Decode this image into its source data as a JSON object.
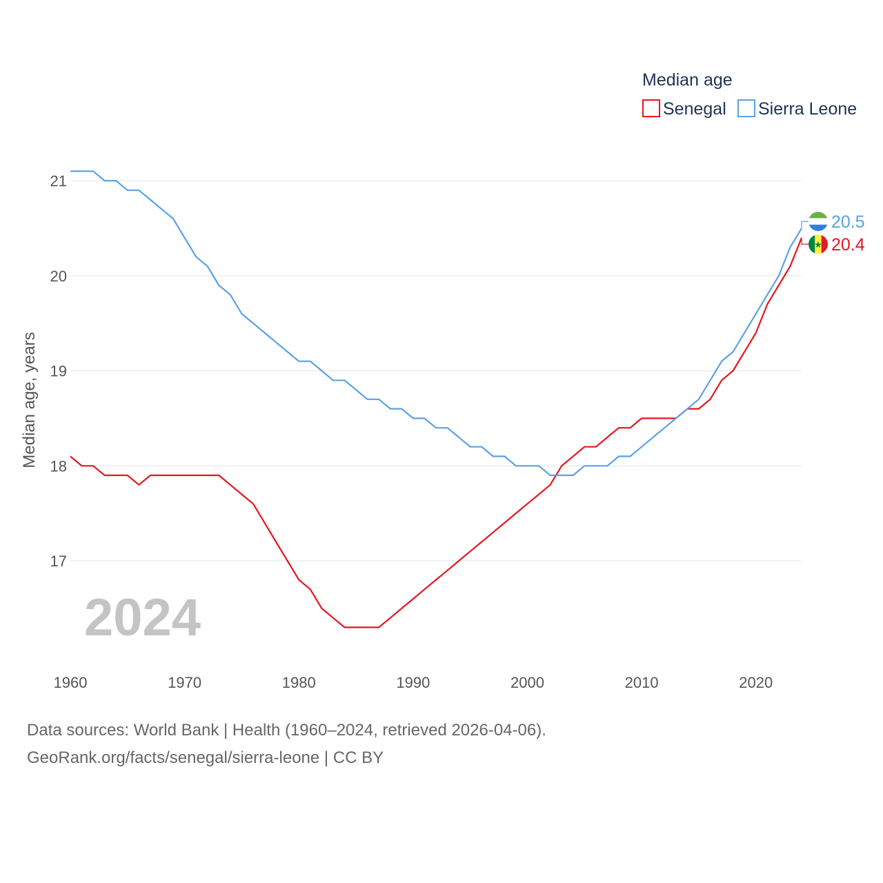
{
  "chart_data": {
    "type": "line",
    "title": "",
    "legend_title": "Median age",
    "ylabel": "Median age, years",
    "xlabel": "",
    "xlim": [
      1960,
      2024
    ],
    "ylim": [
      16.0,
      21.2
    ],
    "x_ticks": [
      "1960",
      "1970",
      "1980",
      "1990",
      "2000",
      "2010",
      "2020"
    ],
    "y_ticks": [
      "17",
      "18",
      "19",
      "20",
      "21"
    ],
    "year_label": "2024",
    "x": [
      1960,
      1961,
      1962,
      1963,
      1964,
      1965,
      1966,
      1967,
      1968,
      1969,
      1970,
      1971,
      1972,
      1973,
      1974,
      1975,
      1976,
      1977,
      1978,
      1979,
      1980,
      1981,
      1982,
      1983,
      1984,
      1985,
      1986,
      1987,
      1988,
      1989,
      1990,
      1991,
      1992,
      1993,
      1994,
      1995,
      1996,
      1997,
      1998,
      1999,
      2000,
      2001,
      2002,
      2003,
      2004,
      2005,
      2006,
      2007,
      2008,
      2009,
      2010,
      2011,
      2012,
      2013,
      2014,
      2015,
      2016,
      2017,
      2018,
      2019,
      2020,
      2021,
      2022,
      2023,
      2024
    ],
    "series": [
      {
        "name": "Senegal",
        "color": "#e8141e",
        "end_label": "20.4",
        "flag_icon": "senegal-flag-icon",
        "values": [
          18.1,
          18.0,
          18.0,
          17.9,
          17.9,
          17.9,
          17.8,
          17.9,
          17.9,
          17.9,
          17.9,
          17.9,
          17.9,
          17.9,
          17.8,
          17.7,
          17.6,
          17.4,
          17.2,
          17.0,
          16.8,
          16.7,
          16.5,
          16.4,
          16.3,
          16.3,
          16.3,
          16.3,
          16.4,
          16.5,
          16.6,
          16.7,
          16.8,
          16.9,
          17.0,
          17.1,
          17.2,
          17.3,
          17.4,
          17.5,
          17.6,
          17.7,
          17.8,
          18.0,
          18.1,
          18.2,
          18.2,
          18.3,
          18.4,
          18.4,
          18.5,
          18.5,
          18.5,
          18.5,
          18.6,
          18.6,
          18.7,
          18.9,
          19.0,
          19.2,
          19.4,
          19.7,
          19.9,
          20.1,
          20.4
        ]
      },
      {
        "name": "Sierra Leone",
        "color": "#5aa0e6",
        "end_label": "20.5",
        "flag_icon": "sierra-leone-flag-icon",
        "values": [
          21.1,
          21.1,
          21.1,
          21.0,
          21.0,
          20.9,
          20.9,
          20.8,
          20.7,
          20.6,
          20.4,
          20.2,
          20.1,
          19.9,
          19.8,
          19.6,
          19.5,
          19.4,
          19.3,
          19.2,
          19.1,
          19.1,
          19.0,
          18.9,
          18.9,
          18.8,
          18.7,
          18.7,
          18.6,
          18.6,
          18.5,
          18.5,
          18.4,
          18.4,
          18.3,
          18.2,
          18.2,
          18.1,
          18.1,
          18.0,
          18.0,
          18.0,
          17.9,
          17.9,
          17.9,
          18.0,
          18.0,
          18.0,
          18.1,
          18.1,
          18.2,
          18.3,
          18.4,
          18.5,
          18.6,
          18.7,
          18.9,
          19.1,
          19.2,
          19.4,
          19.6,
          19.8,
          20.0,
          20.3,
          20.5
        ]
      }
    ]
  },
  "footer": {
    "line1": "Data sources: World Bank | Health (1960–2024, retrieved 2026-04-06).",
    "line2": "GeoRank.org/facts/senegal/sierra-leone | CC BY"
  }
}
